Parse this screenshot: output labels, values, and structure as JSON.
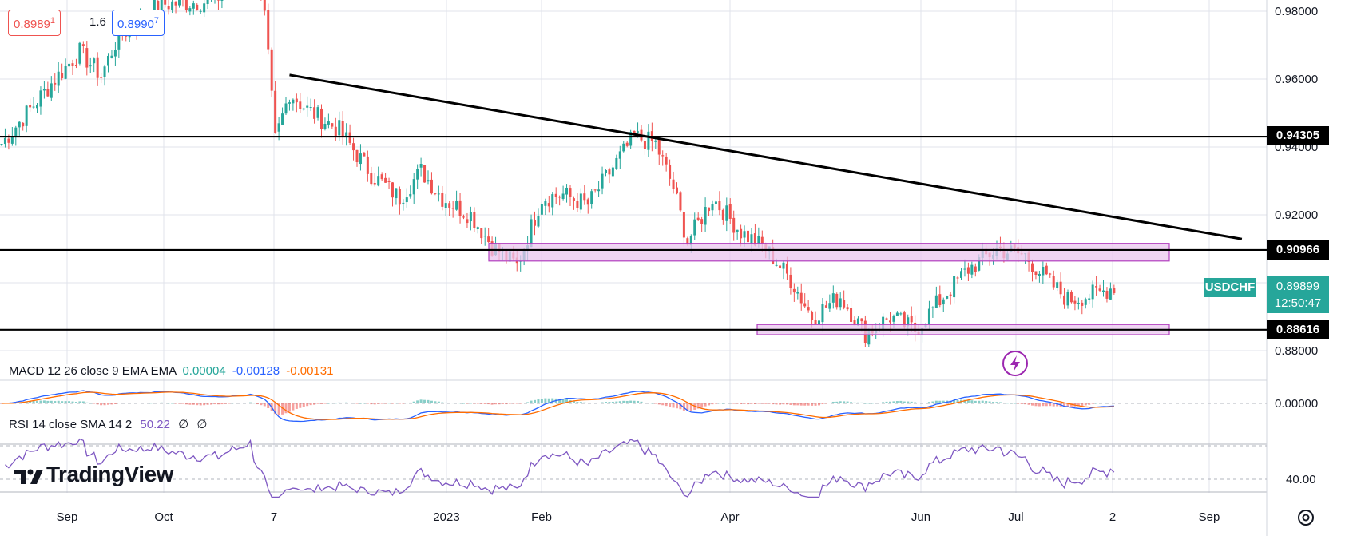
{
  "chart_data": {
    "type": "candlestick",
    "symbol": "USDCHF",
    "colors": {
      "up": "#26a69a",
      "down": "#ef5350",
      "trendline": "#000000",
      "zone_fill": "#e9c6ee",
      "zone_border": "#b23fbf",
      "symbol_tag": "#26a69a",
      "macd_line": "#2962ff",
      "signal_line": "#ff6d00",
      "rsi_line": "#7e57c2"
    },
    "price_axis": {
      "ticks": [
        "0.98000",
        "0.96000",
        "0.94000",
        "0.92000",
        "0.88000"
      ],
      "range": [
        0.8777,
        0.982
      ]
    },
    "time_axis": {
      "labels": [
        "Sep",
        "Oct",
        "7",
        "2023",
        "Feb",
        "Apr",
        "Jun",
        "Jul",
        "2",
        "Sep"
      ]
    },
    "horizontal_levels": [
      {
        "label": "0.94305",
        "value": 0.94305
      },
      {
        "label": "0.90966",
        "value": 0.90966
      },
      {
        "label": "0.88616",
        "value": 0.88616
      }
    ],
    "zones": [
      {
        "name": "resistance-zone",
        "top": 0.9116,
        "bottom": 0.9064
      },
      {
        "name": "support-zone",
        "top": 0.8877,
        "bottom": 0.8847
      }
    ],
    "trendline": {
      "from": {
        "bar": 81,
        "price": 0.9612
      },
      "to": {
        "bar": 322,
        "price": 0.911
      }
    },
    "last_price": {
      "symbol": "USDCHF",
      "price": "0.89899",
      "countdown": "12:50:47"
    },
    "top_left": {
      "bid": "0.8989",
      "bid_small": "1",
      "spread": "1.6",
      "ask": "0.8990",
      "ask_small": "7"
    },
    "macd": {
      "label": "MACD 12 26 close 9 EMA EMA",
      "histogram": "0.00004",
      "macd": "-0.00128",
      "signal": "-0.00131",
      "axis_tick": "0.00000"
    },
    "rsi": {
      "label": "RSI 14 close SMA 14 2",
      "value": "50.22",
      "extra1": "∅",
      "extra2": "∅",
      "axis_tick": "40.00"
    },
    "watermark": "TradingView"
  }
}
